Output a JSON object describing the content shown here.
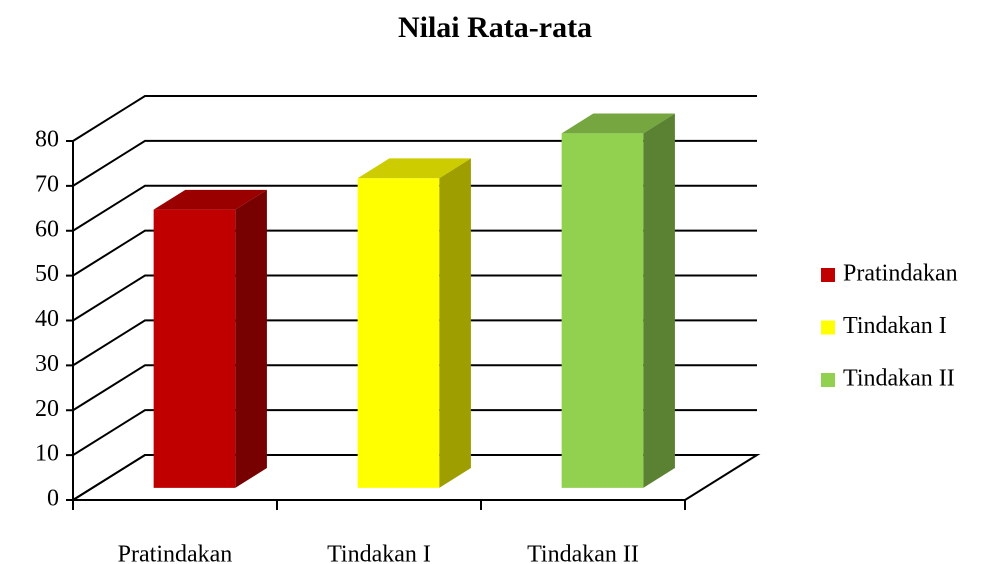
{
  "chart_data": {
    "type": "bar3d",
    "title": "Nilai Rata-rata",
    "categories": [
      "Pratindakan",
      "Tindakan I",
      "Tindakan II"
    ],
    "series": [
      {
        "name": "Pratindakan",
        "color": "#c00000",
        "values": [
          62,
          null,
          null
        ]
      },
      {
        "name": "Tindakan I",
        "color": "#ffff00",
        "values": [
          null,
          69,
          null
        ]
      },
      {
        "name": "Tindakan II",
        "color": "#92d050",
        "values": [
          null,
          null,
          79
        ]
      }
    ],
    "ylim": [
      0,
      80
    ],
    "yticks": [
      0,
      10,
      20,
      30,
      40,
      50,
      60,
      70,
      80
    ],
    "grid": true,
    "legend": "right"
  }
}
